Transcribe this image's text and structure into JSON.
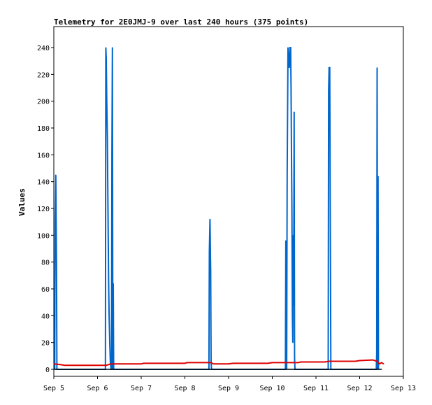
{
  "chart_data": {
    "type": "line",
    "title": "Telemetry for 2E0JMJ-9 over last 240 hours (375 points)",
    "xlabel": "",
    "ylabel": "Values",
    "x_ticks": [
      {
        "day": 0,
        "label": "Sep 5"
      },
      {
        "day": 1,
        "label": "Sep 6"
      },
      {
        "day": 2,
        "label": "Sep 7"
      },
      {
        "day": 3,
        "label": "Sep 8"
      },
      {
        "day": 4,
        "label": "Sep 9"
      },
      {
        "day": 5,
        "label": "Sep 10"
      },
      {
        "day": 6,
        "label": "Sep 11"
      },
      {
        "day": 7,
        "label": "Sep 12"
      },
      {
        "day": 8,
        "label": "Sep 13"
      }
    ],
    "xlim": [
      0,
      8
    ],
    "y_ticks": [
      0,
      20,
      40,
      60,
      80,
      100,
      120,
      140,
      160,
      180,
      200,
      220,
      240
    ],
    "ylim": [
      0,
      240
    ],
    "grid": false,
    "series": [
      {
        "color": "#0066cc",
        "points": [
          [
            0.02,
            0
          ],
          [
            0.03,
            112
          ],
          [
            0.045,
            145
          ],
          [
            0.06,
            80
          ],
          [
            0.07,
            0
          ],
          [
            1.18,
            0
          ],
          [
            1.19,
            240
          ],
          [
            1.2,
            232
          ],
          [
            1.21,
            205
          ],
          [
            1.225,
            172
          ],
          [
            1.235,
            135
          ],
          [
            1.245,
            100
          ],
          [
            1.255,
            65
          ],
          [
            1.265,
            40
          ],
          [
            1.28,
            20
          ],
          [
            1.295,
            5
          ],
          [
            1.31,
            0
          ],
          [
            1.32,
            0
          ],
          [
            1.33,
            160
          ],
          [
            1.34,
            240
          ],
          [
            1.35,
            0
          ],
          [
            1.36,
            64
          ],
          [
            1.37,
            0
          ],
          [
            3.55,
            0
          ],
          [
            3.56,
            88
          ],
          [
            3.575,
            112
          ],
          [
            3.59,
            72
          ],
          [
            3.6,
            5
          ],
          [
            3.61,
            0
          ],
          [
            5.3,
            0
          ],
          [
            5.31,
            96
          ],
          [
            5.32,
            48
          ],
          [
            5.33,
            0
          ],
          [
            5.34,
            144
          ],
          [
            5.36,
            240
          ],
          [
            5.375,
            232
          ],
          [
            5.39,
            225
          ],
          [
            5.405,
            240
          ],
          [
            5.42,
            240
          ],
          [
            5.43,
            208
          ],
          [
            5.44,
            160
          ],
          [
            5.45,
            120
          ],
          [
            5.46,
            40
          ],
          [
            5.47,
            20
          ],
          [
            5.48,
            100
          ],
          [
            5.49,
            48
          ],
          [
            5.5,
            192
          ],
          [
            5.51,
            8
          ],
          [
            5.52,
            0
          ],
          [
            6.28,
            0
          ],
          [
            6.29,
            208
          ],
          [
            6.3,
            225
          ],
          [
            6.315,
            225
          ],
          [
            6.33,
            96
          ],
          [
            6.34,
            0
          ],
          [
            7.38,
            0
          ],
          [
            7.39,
            12
          ],
          [
            7.4,
            225
          ],
          [
            7.41,
            0
          ],
          [
            7.42,
            144
          ],
          [
            7.43,
            0
          ]
        ]
      },
      {
        "color": "#dd0000",
        "points": [
          [
            0.0,
            4
          ],
          [
            0.15,
            3.5
          ],
          [
            0.25,
            3
          ],
          [
            1.2,
            3
          ],
          [
            1.25,
            3.5
          ],
          [
            1.3,
            4
          ],
          [
            2.0,
            4
          ],
          [
            2.05,
            4.5
          ],
          [
            3.0,
            4.5
          ],
          [
            3.05,
            5
          ],
          [
            3.6,
            5
          ],
          [
            3.65,
            4
          ],
          [
            4.0,
            4
          ],
          [
            4.1,
            4.5
          ],
          [
            4.9,
            4.5
          ],
          [
            5.0,
            5
          ],
          [
            5.6,
            5
          ],
          [
            5.65,
            5.5
          ],
          [
            6.2,
            5.5
          ],
          [
            6.3,
            6
          ],
          [
            6.9,
            6
          ],
          [
            7.0,
            6.5
          ],
          [
            7.3,
            7
          ],
          [
            7.4,
            6
          ],
          [
            7.45,
            4
          ],
          [
            7.5,
            5
          ],
          [
            7.55,
            4
          ]
        ]
      },
      {
        "color": "#000000",
        "points": [
          [
            0.0,
            0
          ],
          [
            7.5,
            0
          ]
        ]
      }
    ]
  }
}
